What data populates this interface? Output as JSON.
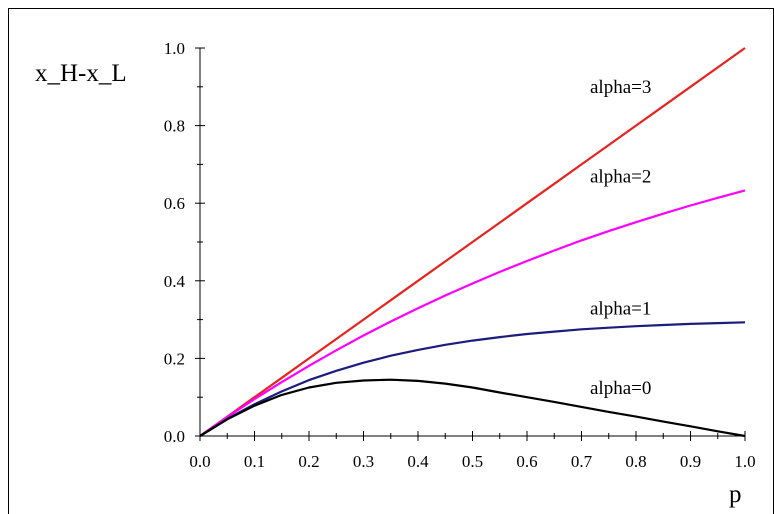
{
  "chart_data": {
    "type": "line",
    "xlabel": "p",
    "ylabel": "x_H-x_L",
    "xlim": [
      0.0,
      1.0
    ],
    "ylim": [
      0.0,
      1.0
    ],
    "x_ticks": [
      "0.0",
      "0.1",
      "0.2",
      "0.3",
      "0.4",
      "0.5",
      "0.6",
      "0.7",
      "0.8",
      "0.9",
      "1.0"
    ],
    "y_ticks": [
      "0.0",
      "0.2",
      "0.4",
      "0.6",
      "0.8",
      "1.0"
    ],
    "grid": false,
    "legend": "none",
    "x": [
      0.0,
      0.05,
      0.1,
      0.15,
      0.2,
      0.25,
      0.3,
      0.35,
      0.4,
      0.45,
      0.5,
      0.55,
      0.6,
      0.65,
      0.7,
      0.75,
      0.8,
      0.85,
      0.9,
      0.95,
      1.0
    ],
    "series": [
      {
        "name": "alpha=3",
        "color": "#e8231e",
        "values": [
          0.0,
          0.05,
          0.1,
          0.15,
          0.2,
          0.25,
          0.3,
          0.35,
          0.4,
          0.45,
          0.5,
          0.55,
          0.6,
          0.65,
          0.7,
          0.75,
          0.8,
          0.85,
          0.9,
          0.95,
          1.0
        ]
      },
      {
        "name": "alpha=2",
        "color": "#ff00ff",
        "values": [
          0.0,
          0.049,
          0.095,
          0.139,
          0.181,
          0.221,
          0.259,
          0.295,
          0.329,
          0.362,
          0.393,
          0.423,
          0.451,
          0.478,
          0.504,
          0.528,
          0.551,
          0.573,
          0.594,
          0.614,
          0.633
        ]
      },
      {
        "name": "alpha=1",
        "color": "#1c1c80",
        "values": [
          0.0,
          0.044,
          0.082,
          0.115,
          0.144,
          0.168,
          0.189,
          0.207,
          0.222,
          0.235,
          0.246,
          0.255,
          0.263,
          0.269,
          0.275,
          0.279,
          0.283,
          0.286,
          0.289,
          0.291,
          0.293
        ]
      },
      {
        "name": "alpha=0",
        "color": "#000000",
        "values": [
          0.0,
          0.043,
          0.078,
          0.106,
          0.125,
          0.137,
          0.143,
          0.145,
          0.142,
          0.135,
          0.125,
          0.112,
          0.1,
          0.088,
          0.075,
          0.062,
          0.05,
          0.037,
          0.025,
          0.012,
          0.0
        ]
      }
    ]
  }
}
